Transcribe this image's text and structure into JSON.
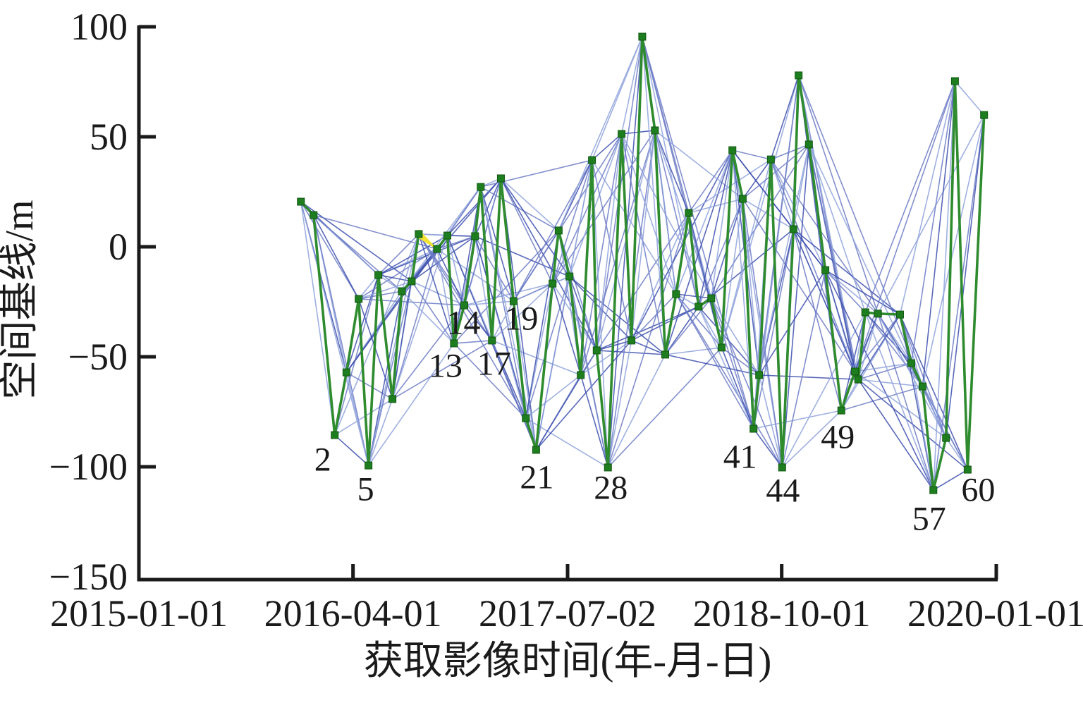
{
  "chart_data": {
    "type": "scatter",
    "subtype": "insar-sbas-baseline-network",
    "title": "",
    "xlabel": "获取影像时间(年-月-日)",
    "ylabel": "空间基线/m",
    "xlim": [
      "2015-01-01",
      "2020-01-01"
    ],
    "ylim": [
      -150,
      100
    ],
    "x_ticks": [
      "2015-01-01",
      "2016-04-01",
      "2017-07-02",
      "2018-10-01",
      "2020-01-01"
    ],
    "y_ticks": [
      100,
      50,
      0,
      -50,
      -100,
      -150
    ],
    "grid": false,
    "legend": "none",
    "axis_color": "#1a1a1a",
    "marker": {
      "shape": "square",
      "size": 10,
      "fill": "#1e7d1e",
      "stroke": "#125812"
    },
    "edge_style": {
      "rule": "interferogram pairs between images close in time; green = consecutive acquisitions, blue = other short-baseline pairs",
      "base_index_gap": 5,
      "extra_index_gap_max": 10,
      "extra_mod": 3,
      "blue_colors": [
        "#3d4fae",
        "#6d7cc6",
        "#8fa3dc"
      ],
      "blue_width": 1.6,
      "green_color": "#2e8b2e",
      "green_width": 3.6
    },
    "reference_highlight": {
      "from_index": 10,
      "to_index": 11,
      "color": "#f2e335",
      "note": "yellow wedge marking reference image pair"
    },
    "nodes_schema": [
      "date",
      "baseline_m",
      "label",
      "label_dx",
      "label_dy"
    ],
    "nodes": [
      [
        "2015-12-12",
        20.5,
        null,
        0,
        0
      ],
      [
        "2016-01-08",
        14.4,
        null,
        0,
        0
      ],
      [
        "2016-02-22",
        -85.6,
        "2",
        -17,
        35
      ],
      [
        "2016-03-18",
        -57.1,
        null,
        0,
        0
      ],
      [
        "2016-04-13",
        -23.7,
        null,
        0,
        0
      ],
      [
        "2016-05-04",
        -99.4,
        "5",
        -4,
        34
      ],
      [
        "2016-05-25",
        -12.8,
        null,
        0,
        0
      ],
      [
        "2016-06-24",
        -69.2,
        null,
        0,
        0
      ],
      [
        "2016-07-14",
        -20.2,
        null,
        0,
        0
      ],
      [
        "2016-08-04",
        -15.7,
        null,
        0,
        0
      ],
      [
        "2016-08-19",
        5.8,
        null,
        0,
        0
      ],
      [
        "2016-09-27",
        -1.0,
        null,
        0,
        0
      ],
      [
        "2016-10-19",
        5.1,
        null,
        0,
        0
      ],
      [
        "2016-11-02",
        -43.9,
        "13",
        -12,
        32
      ],
      [
        "2016-11-24",
        -26.6,
        "14",
        -1,
        25
      ],
      [
        "2016-12-17",
        4.8,
        null,
        0,
        0
      ],
      [
        "2016-12-29",
        27.2,
        null,
        0,
        0
      ],
      [
        "2017-01-22",
        -42.6,
        "17",
        3,
        33
      ],
      [
        "2017-02-10",
        31.1,
        null,
        0,
        0
      ],
      [
        "2017-03-09",
        -24.7,
        "19",
        11,
        25
      ],
      [
        "2017-04-04",
        -77.9,
        null,
        0,
        0
      ],
      [
        "2017-04-26",
        -92.3,
        "21",
        1,
        39
      ],
      [
        "2017-05-31",
        -16.7,
        null,
        0,
        0
      ],
      [
        "2017-06-13",
        7.4,
        null,
        0,
        0
      ],
      [
        "2017-07-06",
        -13.5,
        null,
        0,
        0
      ],
      [
        "2017-07-30",
        -58.3,
        null,
        0,
        0
      ],
      [
        "2017-08-23",
        39.4,
        null,
        0,
        0
      ],
      [
        "2017-09-02",
        -47.1,
        null,
        0,
        0
      ],
      [
        "2017-09-26",
        -100.3,
        "28",
        4,
        29
      ],
      [
        "2017-10-25",
        51.3,
        null,
        0,
        0
      ],
      [
        "2017-11-15",
        -42.6,
        null,
        0,
        0
      ],
      [
        "2017-12-08",
        95.5,
        null,
        0,
        0
      ],
      [
        "2018-01-04",
        52.9,
        null,
        0,
        0
      ],
      [
        "2018-01-26",
        -49.0,
        null,
        0,
        0
      ],
      [
        "2018-02-18",
        -21.5,
        null,
        0,
        0
      ],
      [
        "2018-03-17",
        15.4,
        null,
        0,
        0
      ],
      [
        "2018-04-07",
        -27.2,
        null,
        0,
        0
      ],
      [
        "2018-05-04",
        -23.4,
        null,
        0,
        0
      ],
      [
        "2018-05-26",
        -45.8,
        null,
        0,
        0
      ],
      [
        "2018-06-18",
        43.9,
        null,
        0,
        0
      ],
      [
        "2018-07-10",
        21.8,
        null,
        0,
        0
      ],
      [
        "2018-08-02",
        -82.7,
        "41",
        -19,
        40
      ],
      [
        "2018-08-14",
        -58.3,
        null,
        0,
        0
      ],
      [
        "2018-09-08",
        39.7,
        null,
        0,
        0
      ],
      [
        "2018-10-02",
        -100.3,
        "44",
        1,
        33
      ],
      [
        "2018-10-26",
        8.0,
        null,
        0,
        0
      ],
      [
        "2018-11-06",
        77.9,
        null,
        0,
        0
      ],
      [
        "2018-11-28",
        46.5,
        null,
        0,
        0
      ],
      [
        "2019-01-02",
        -10.6,
        null,
        0,
        0
      ],
      [
        "2019-02-05",
        -74.4,
        "49",
        -5,
        38
      ],
      [
        "2019-03-06",
        -56.7,
        null,
        0,
        0
      ],
      [
        "2019-03-13",
        -60.3,
        null,
        0,
        0
      ],
      [
        "2019-03-28",
        -29.8,
        null,
        0,
        0
      ],
      [
        "2019-04-24",
        -30.4,
        null,
        0,
        0
      ],
      [
        "2019-06-10",
        -30.8,
        null,
        0,
        0
      ],
      [
        "2019-07-04",
        -52.9,
        null,
        0,
        0
      ],
      [
        "2019-07-28",
        -63.5,
        null,
        0,
        0
      ],
      [
        "2019-08-20",
        -110.6,
        "57",
        -6,
        41
      ],
      [
        "2019-09-16",
        -86.9,
        null,
        0,
        0
      ],
      [
        "2019-10-05",
        75.3,
        null,
        0,
        0
      ],
      [
        "2019-11-01",
        -101.3,
        "60",
        15,
        29
      ],
      [
        "2019-12-06",
        59.9,
        null,
        0,
        0
      ]
    ]
  }
}
